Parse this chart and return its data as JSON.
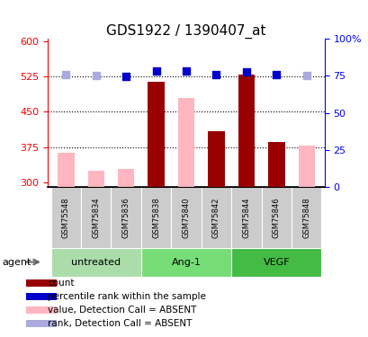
{
  "title": "GDS1922 / 1390407_at",
  "samples": [
    "GSM75548",
    "GSM75834",
    "GSM75836",
    "GSM75838",
    "GSM75840",
    "GSM75842",
    "GSM75844",
    "GSM75846",
    "GSM75848"
  ],
  "ylim_left": [
    290,
    605
  ],
  "ylim_right": [
    0,
    100
  ],
  "yticks_left": [
    300,
    375,
    450,
    525,
    600
  ],
  "yticks_right": [
    0,
    25,
    50,
    75,
    100
  ],
  "ytick_right_labels": [
    "0",
    "25",
    "50",
    "75",
    "100%"
  ],
  "bar_bottom": 290,
  "gridlines": [
    375,
    450,
    525
  ],
  "count_values": [
    null,
    null,
    null,
    513,
    null,
    408,
    528,
    385,
    null
  ],
  "absent_values": [
    362,
    325,
    328,
    null,
    480,
    null,
    null,
    null,
    378
  ],
  "rank_present": [
    null,
    null,
    526,
    536,
    536,
    528,
    535,
    528,
    null
  ],
  "rank_absent": [
    528,
    527,
    null,
    null,
    null,
    null,
    null,
    null,
    527
  ],
  "count_color": "#990000",
  "absent_bar_color": "#FFB6C1",
  "rank_present_color": "#0000CC",
  "rank_absent_color": "#AAAADD",
  "bar_width": 0.55,
  "dot_size": 38,
  "sample_bg_color": "#CCCCCC",
  "group_defs": [
    {
      "label": "untreated",
      "start": 0,
      "end": 2,
      "color": "#AADDAA"
    },
    {
      "label": "Ang-1",
      "start": 3,
      "end": 5,
      "color": "#77DD77"
    },
    {
      "label": "VEGF",
      "start": 6,
      "end": 8,
      "color": "#44BB44"
    }
  ],
  "legend_items": [
    {
      "label": "count",
      "color": "#990000"
    },
    {
      "label": "percentile rank within the sample",
      "color": "#0000CC"
    },
    {
      "label": "value, Detection Call = ABSENT",
      "color": "#FFB6C1"
    },
    {
      "label": "rank, Detection Call = ABSENT",
      "color": "#AAAADD"
    }
  ],
  "title_fontsize": 11,
  "tick_fontsize": 8,
  "sample_fontsize": 6,
  "group_fontsize": 8,
  "legend_fontsize": 7.5
}
